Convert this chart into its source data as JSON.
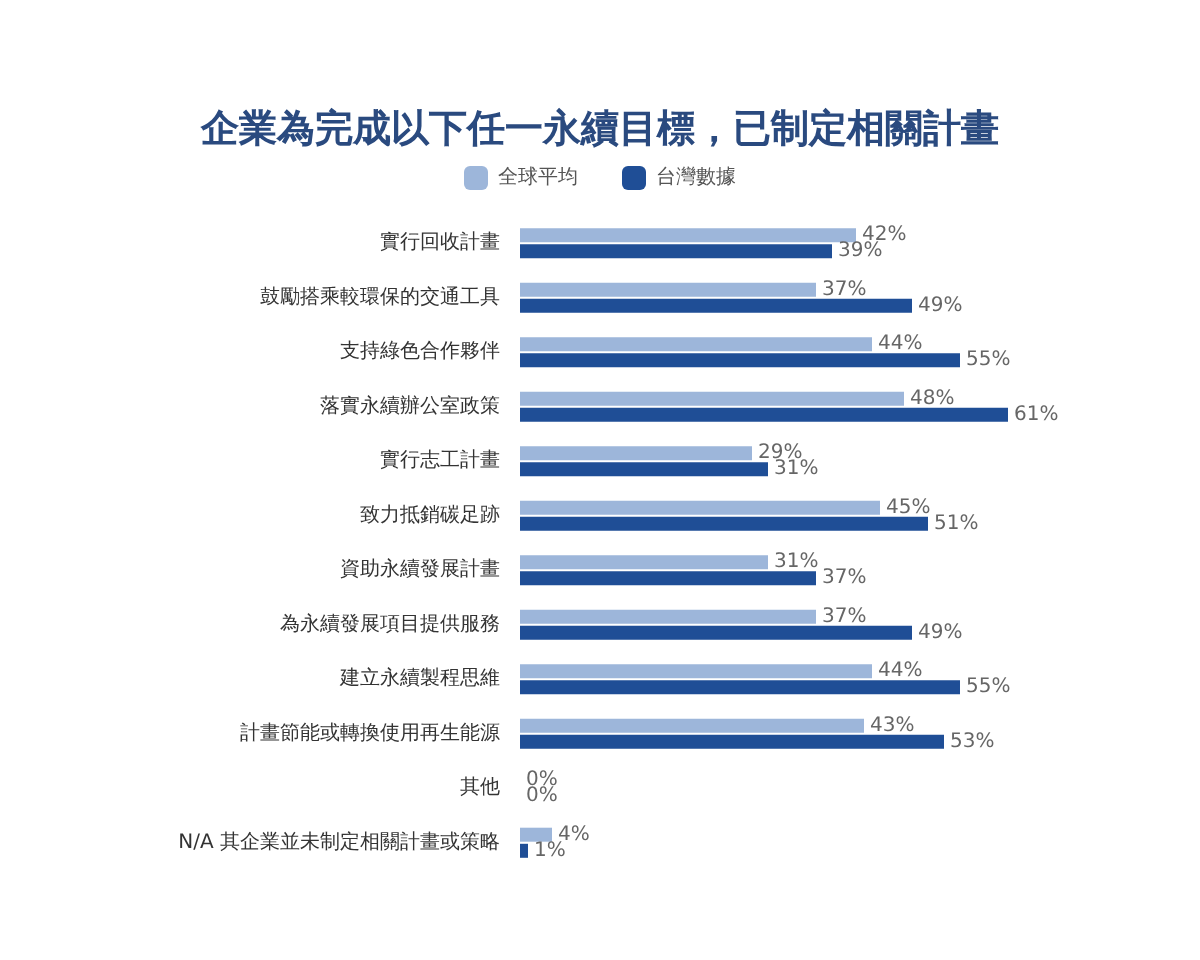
{
  "chart_data": {
    "type": "bar",
    "orientation": "horizontal",
    "title": "企業為完成以下任一永續目標，已制定相關計畫",
    "categories": [
      "實行回收計畫",
      "鼓勵搭乘較環保的交通工具",
      "支持綠色合作夥伴",
      "落實永續辦公室政策",
      "實行志工計畫",
      "致力抵銷碳足跡",
      "資助永續發展計畫",
      "為永續發展項目提供服務",
      "建立永續製程思維",
      "計畫節能或轉換使用再生能源",
      "其他",
      "N/A 其企業並未制定相關計畫或策略"
    ],
    "series": [
      {
        "name": "全球平均",
        "color": "#9db6da",
        "values": [
          42,
          37,
          44,
          48,
          29,
          45,
          31,
          37,
          44,
          43,
          0,
          4
        ],
        "value_labels": [
          "42%",
          "37%",
          "44%",
          "48%",
          "29%",
          "45%",
          "31%",
          "37%",
          "44%",
          "43%",
          "0%",
          "4%"
        ]
      },
      {
        "name": "台灣數據",
        "color": "#1f4e96",
        "values": [
          39,
          49,
          55,
          61,
          31,
          51,
          37,
          49,
          55,
          53,
          0,
          1
        ],
        "value_labels": [
          "39%",
          "49%",
          "55%",
          "61%",
          "31%",
          "51%",
          "37%",
          "49%",
          "55%",
          "53%",
          "0%",
          "1%"
        ]
      }
    ],
    "legend": "top",
    "tick_labels": "y"
  }
}
